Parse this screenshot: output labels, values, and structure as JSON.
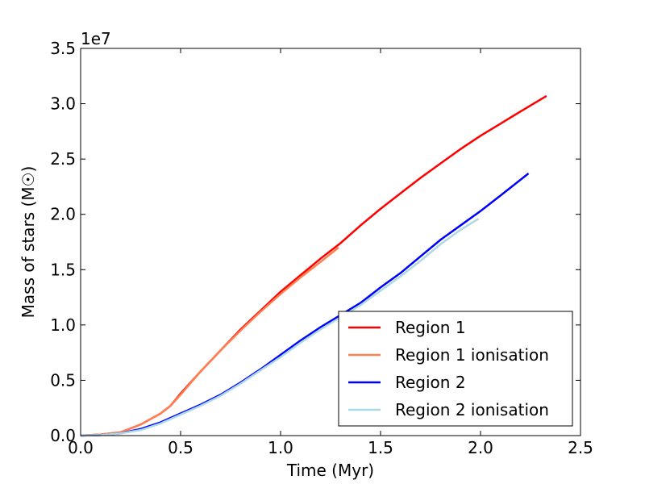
{
  "chart_data": {
    "type": "line",
    "xlabel": "Time (Myr)",
    "ylabel": "Mass of stars (M☉)",
    "y_offset_label": "1e7",
    "xlim": [
      0,
      2.5
    ],
    "xticks": [
      {
        "value": 0,
        "label": "0.0"
      },
      0.5,
      {
        "value": 1,
        "label": "1.0"
      },
      1.5,
      {
        "value": 2,
        "label": "2.0"
      },
      2.5
    ],
    "ylim": [
      0,
      3.5
    ],
    "yticks": [
      {
        "value": 0,
        "label": "0.0"
      },
      0.5,
      {
        "value": 1,
        "label": "1.0"
      },
      1.5,
      {
        "value": 2,
        "label": "2.0"
      },
      2.5,
      {
        "value": 3,
        "label": "3.0"
      },
      3.5
    ],
    "legend": "lower right",
    "series": [
      {
        "name": "Region 1",
        "color": "#ff0000",
        "x": [
          0,
          0.1,
          0.2,
          0.3,
          0.4,
          0.45,
          0.5,
          0.6,
          0.7,
          0.8,
          0.9,
          1.0,
          1.1,
          1.2,
          1.3,
          1.4,
          1.5,
          1.6,
          1.7,
          1.8,
          1.9,
          2.0,
          2.1,
          2.2,
          2.33
        ],
        "values": [
          0,
          0.01,
          0.03,
          0.1,
          0.2,
          0.27,
          0.38,
          0.58,
          0.77,
          0.96,
          1.13,
          1.3,
          1.45,
          1.6,
          1.74,
          1.9,
          2.05,
          2.19,
          2.33,
          2.46,
          2.59,
          2.71,
          2.82,
          2.93,
          3.07
        ]
      },
      {
        "name": "Region 1 ionisation",
        "color": "#ff7f50",
        "x": [
          0,
          0.1,
          0.2,
          0.3,
          0.4,
          0.45,
          0.5,
          0.6,
          0.7,
          0.8,
          0.9,
          1.0,
          1.1,
          1.2,
          1.29
        ],
        "values": [
          0,
          0.01,
          0.03,
          0.1,
          0.2,
          0.27,
          0.37,
          0.58,
          0.77,
          0.95,
          1.12,
          1.28,
          1.43,
          1.57,
          1.7
        ]
      },
      {
        "name": "Region 2",
        "color": "#0000ff",
        "x": [
          0,
          0.1,
          0.2,
          0.3,
          0.4,
          0.5,
          0.6,
          0.7,
          0.8,
          0.9,
          1.0,
          1.1,
          1.2,
          1.3,
          1.4,
          1.5,
          1.6,
          1.7,
          1.8,
          1.9,
          2.0,
          2.1,
          2.24
        ],
        "values": [
          0,
          0.005,
          0.02,
          0.06,
          0.12,
          0.2,
          0.28,
          0.37,
          0.48,
          0.6,
          0.73,
          0.86,
          0.98,
          1.09,
          1.2,
          1.34,
          1.47,
          1.62,
          1.77,
          1.9,
          2.03,
          2.17,
          2.37
        ]
      },
      {
        "name": "Region 2 ionisation",
        "color": "#add8e6",
        "x": [
          0,
          0.1,
          0.2,
          0.3,
          0.4,
          0.5,
          0.6,
          0.7,
          0.8,
          0.9,
          1.0,
          1.1,
          1.2,
          1.3,
          1.4,
          1.5,
          1.6,
          1.7,
          1.8,
          1.9,
          1.99
        ],
        "values": [
          0,
          0.005,
          0.02,
          0.05,
          0.11,
          0.19,
          0.27,
          0.36,
          0.47,
          0.59,
          0.71,
          0.84,
          0.96,
          1.07,
          1.18,
          1.31,
          1.44,
          1.58,
          1.73,
          1.86,
          1.96
        ]
      }
    ]
  }
}
